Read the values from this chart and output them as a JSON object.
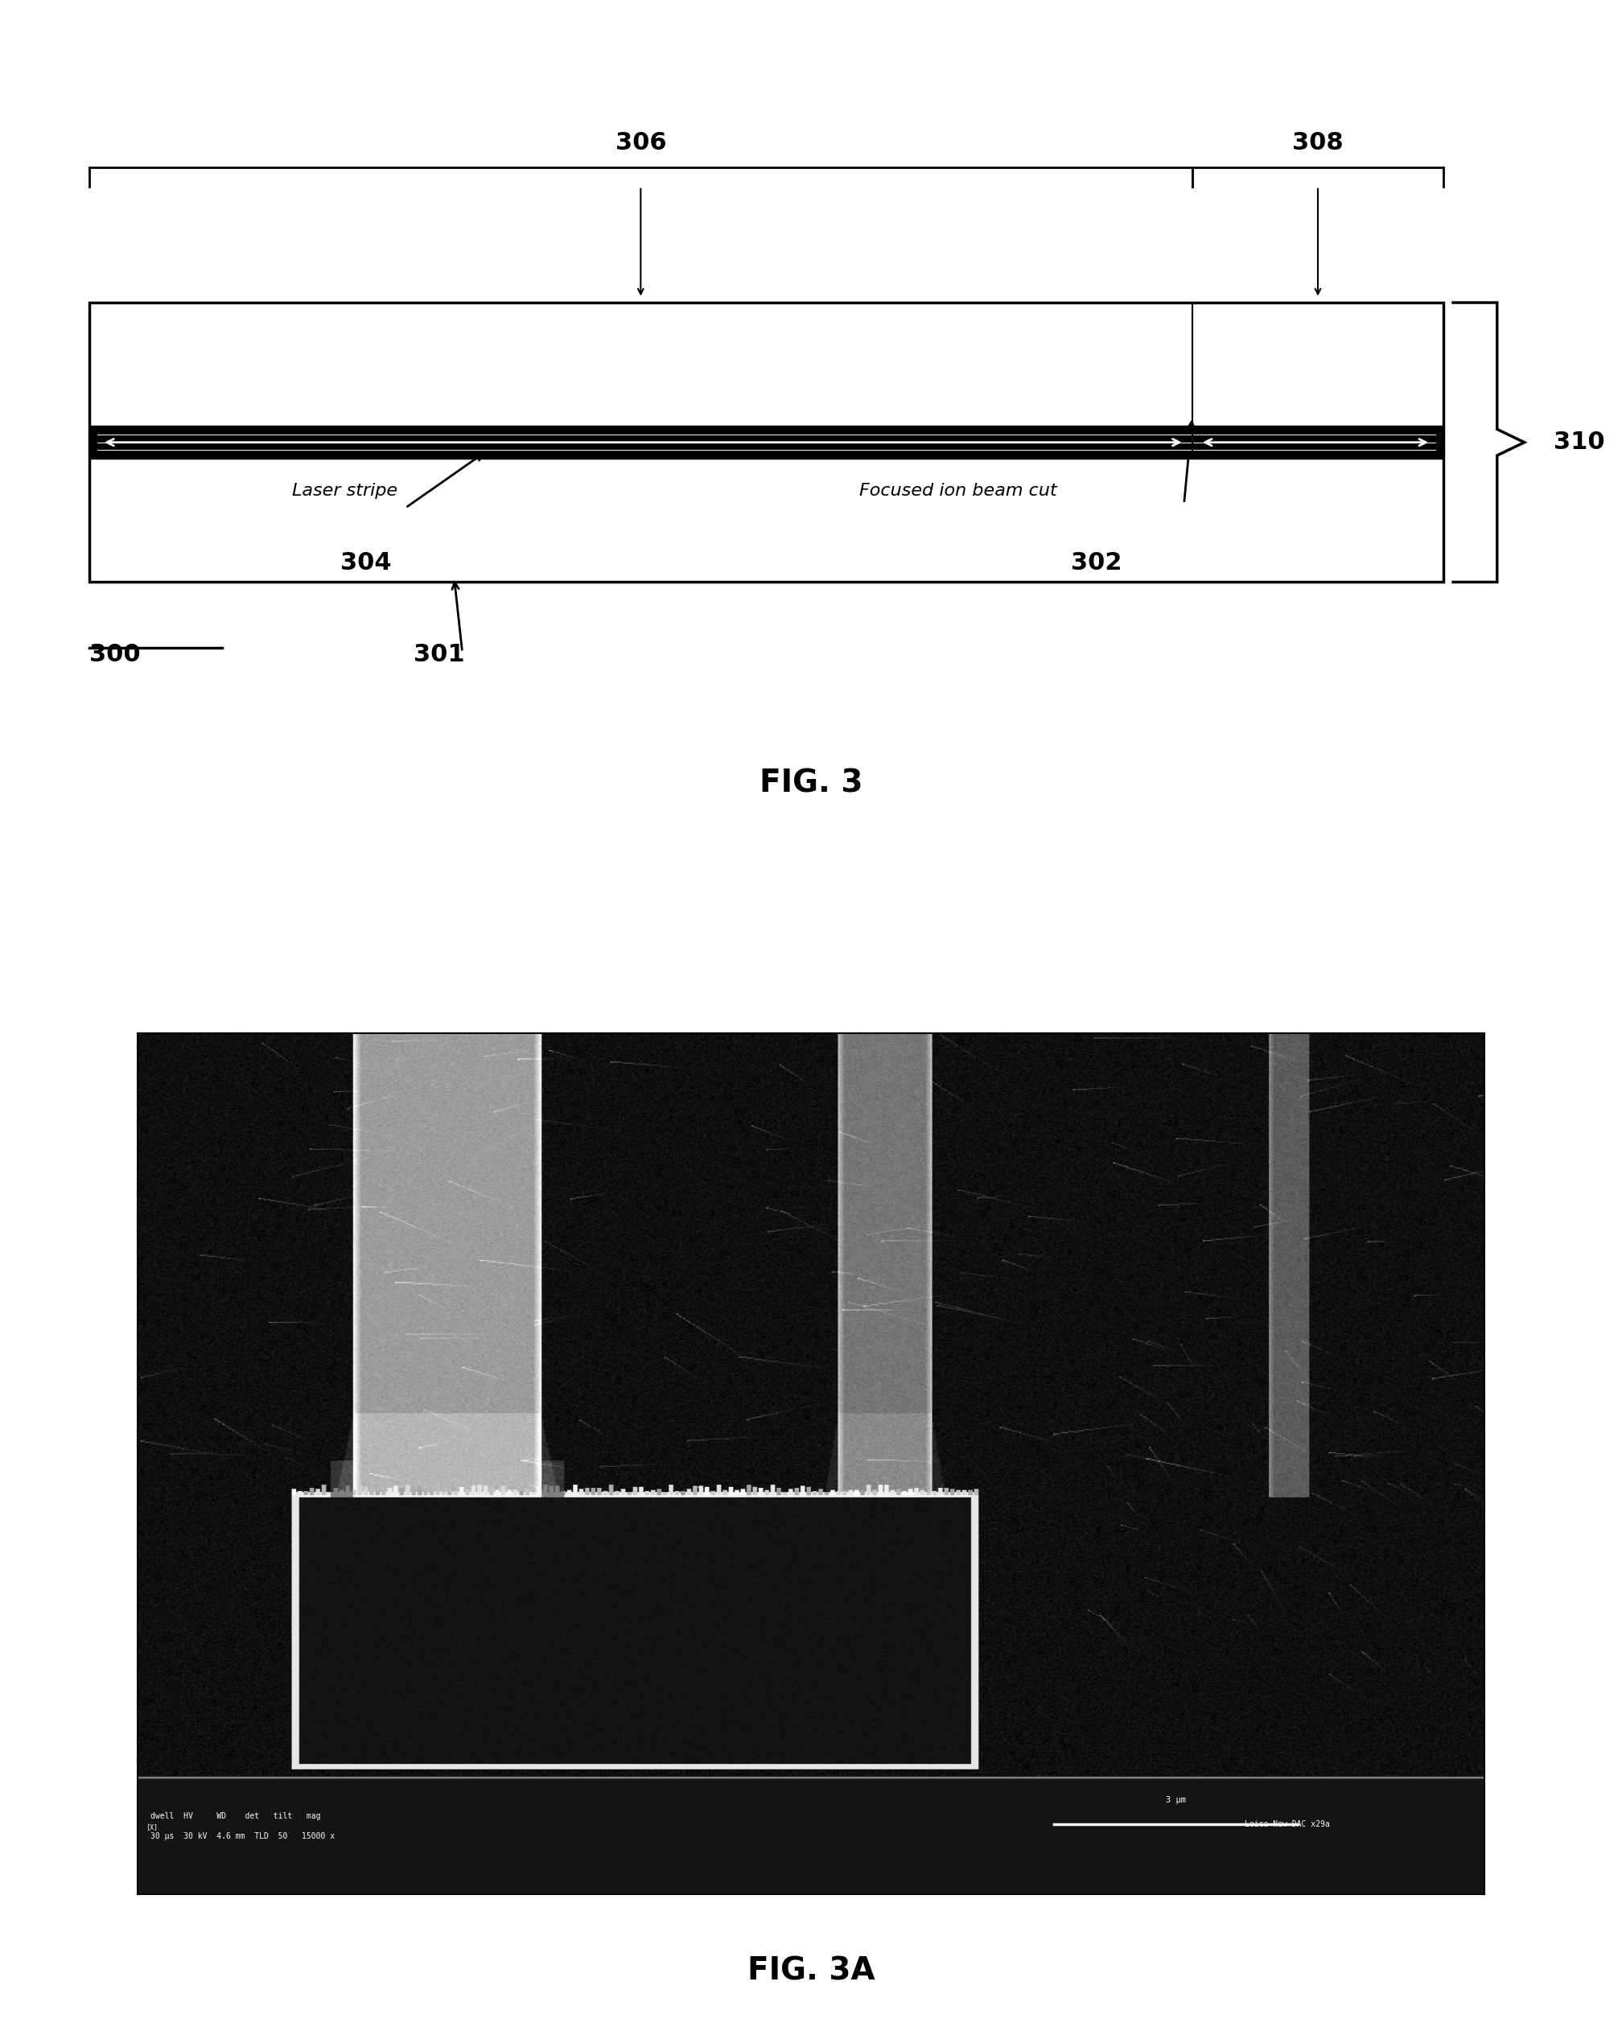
{
  "fig_width": 20.16,
  "fig_height": 25.24,
  "bg_color": "#ffffff",
  "diagram": {
    "label_306": "306",
    "label_308": "308",
    "label_310": "310",
    "label_304": "304",
    "label_302": "302",
    "label_300": "300",
    "label_301": "301",
    "label_laser_stripe": "Laser stripe",
    "label_focused_ion_beam": "Focused ion beam cut",
    "fig3_label": "FIG. 3",
    "fig3a_label": "FIG. 3A"
  }
}
